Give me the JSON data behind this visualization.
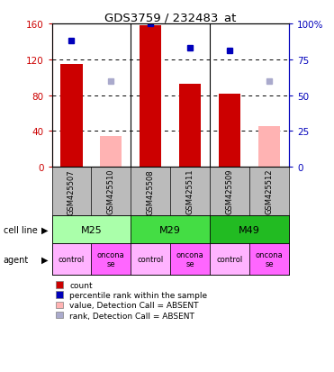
{
  "title": "GDS3759 / 232483_at",
  "samples": [
    "GSM425507",
    "GSM425510",
    "GSM425508",
    "GSM425511",
    "GSM425509",
    "GSM425512"
  ],
  "count_values": [
    115,
    null,
    158,
    93,
    82,
    null
  ],
  "count_absent_values": [
    null,
    34,
    null,
    null,
    null,
    45
  ],
  "rank_values": [
    88,
    null,
    100,
    83,
    81,
    null
  ],
  "rank_absent_values": [
    null,
    60,
    null,
    null,
    null,
    60
  ],
  "ylim_left": [
    0,
    160
  ],
  "ylim_right": [
    0,
    100
  ],
  "yticks_left": [
    0,
    40,
    80,
    120,
    160
  ],
  "yticks_right": [
    0,
    25,
    50,
    75,
    100
  ],
  "ytick_right_labels": [
    "0",
    "25",
    "50",
    "75",
    "100%"
  ],
  "bar_width": 0.55,
  "count_color": "#CC0000",
  "count_absent_color": "#FFB3B3",
  "rank_color": "#0000BB",
  "rank_absent_color": "#AAAACC",
  "left_axis_color": "#CC0000",
  "right_axis_color": "#0000BB",
  "bg_labels": "#BBBBBB",
  "cell_line_colors": [
    "#AAFFAA",
    "#44DD44",
    "#22BB22"
  ],
  "cell_line_labels": [
    "M25",
    "M29",
    "M49"
  ],
  "cell_line_spans": [
    [
      0,
      2
    ],
    [
      2,
      4
    ],
    [
      4,
      6
    ]
  ],
  "agent_labels": [
    "control",
    "oncona\nse",
    "control",
    "oncona\nse",
    "control",
    "oncona\nse"
  ],
  "agent_colors": [
    "#FFB3FF",
    "#FF66FF",
    "#FFB3FF",
    "#FF66FF",
    "#FFB3FF",
    "#FF66FF"
  ],
  "legend_items": [
    {
      "label": "count",
      "color": "#CC0000"
    },
    {
      "label": "percentile rank within the sample",
      "color": "#0000BB"
    },
    {
      "label": "value, Detection Call = ABSENT",
      "color": "#FFB3B3"
    },
    {
      "label": "rank, Detection Call = ABSENT",
      "color": "#AAAACC"
    }
  ],
  "figsize": [
    3.71,
    4.14
  ],
  "dpi": 100
}
